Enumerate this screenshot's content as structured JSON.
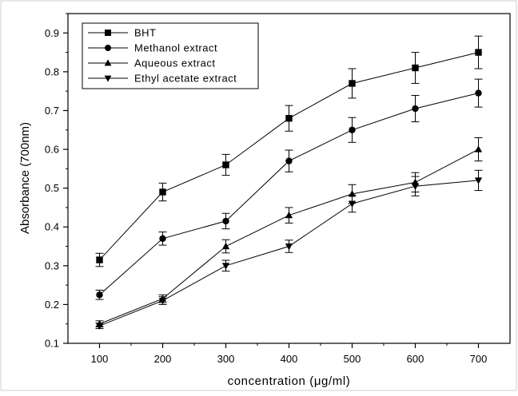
{
  "chart_data": {
    "type": "line",
    "title": "",
    "xlabel": "concentration (μg/ml)",
    "ylabel": "Absorbance (700nm)",
    "xlim": [
      50,
      750
    ],
    "ylim": [
      0.1,
      0.95
    ],
    "x": [
      100,
      200,
      300,
      400,
      500,
      600,
      700
    ],
    "xticks": [
      "100",
      "200",
      "300",
      "400",
      "500",
      "600",
      "700"
    ],
    "yticks": [
      "0.1",
      "0.2",
      "0.3",
      "0.4",
      "0.5",
      "0.6",
      "0.7",
      "0.8",
      "0.9"
    ],
    "grid": false,
    "legend_position": "top-left",
    "series": [
      {
        "name": "BHT",
        "marker": "square",
        "values": [
          0.315,
          0.49,
          0.56,
          0.68,
          0.77,
          0.81,
          0.85
        ],
        "errors": [
          0.017,
          0.023,
          0.027,
          0.033,
          0.038,
          0.04,
          0.042
        ]
      },
      {
        "name": "Methanol extract",
        "marker": "circle",
        "values": [
          0.225,
          0.37,
          0.415,
          0.57,
          0.65,
          0.705,
          0.745
        ],
        "errors": [
          0.012,
          0.017,
          0.02,
          0.028,
          0.032,
          0.034,
          0.036
        ]
      },
      {
        "name": "Aqueous extract",
        "marker": "triangle-up",
        "values": [
          0.15,
          0.215,
          0.35,
          0.43,
          0.485,
          0.515,
          0.6
        ],
        "errors": [
          0.008,
          0.01,
          0.017,
          0.02,
          0.024,
          0.025,
          0.03
        ]
      },
      {
        "name": "Ethyl acetate extract",
        "marker": "triangle-down",
        "values": [
          0.145,
          0.21,
          0.3,
          0.35,
          0.46,
          0.505,
          0.52
        ],
        "errors": [
          0.007,
          0.01,
          0.014,
          0.016,
          0.022,
          0.025,
          0.026
        ]
      }
    ],
    "colors": {
      "line": "#000000",
      "background": "#ffffff"
    }
  }
}
